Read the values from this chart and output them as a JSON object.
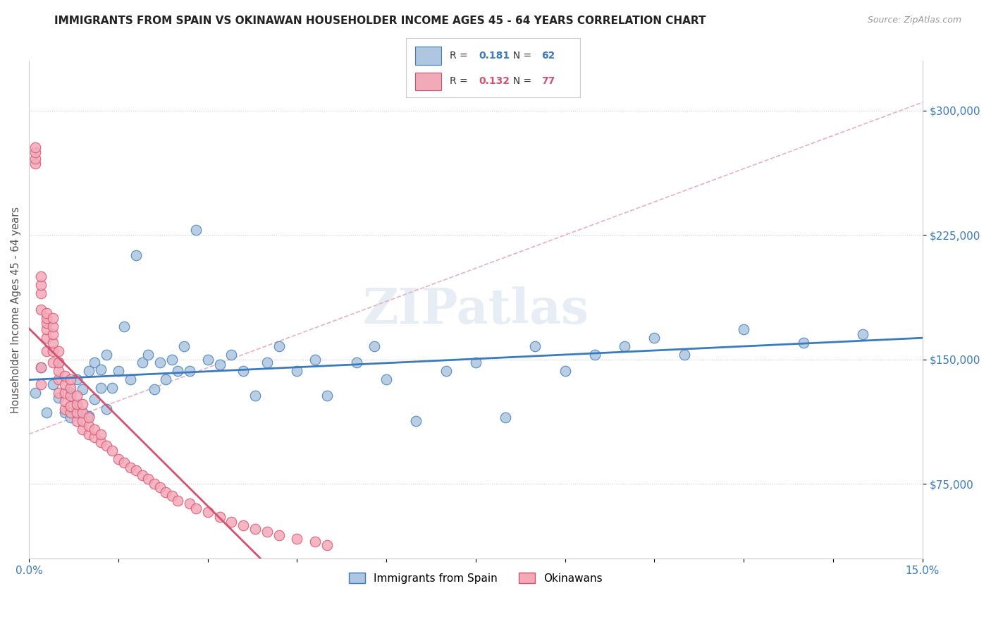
{
  "title": "IMMIGRANTS FROM SPAIN VS OKINAWAN HOUSEHOLDER INCOME AGES 45 - 64 YEARS CORRELATION CHART",
  "source": "Source: ZipAtlas.com",
  "ylabel": "Householder Income Ages 45 - 64 years",
  "xlim": [
    0.0,
    0.15
  ],
  "ylim": [
    30000,
    330000
  ],
  "yticks": [
    75000,
    150000,
    225000,
    300000
  ],
  "ytick_labels": [
    "$75,000",
    "$150,000",
    "$225,000",
    "$300,000"
  ],
  "xticks": [
    0.0,
    0.015,
    0.03,
    0.045,
    0.06,
    0.075,
    0.09,
    0.105,
    0.12,
    0.135,
    0.15
  ],
  "xtick_labels": [
    "0.0%",
    "",
    "",
    "",
    "",
    "",
    "",
    "",
    "",
    "",
    "15.0%"
  ],
  "legend1_R": "0.181",
  "legend1_N": "62",
  "legend2_R": "0.132",
  "legend2_N": "77",
  "blue_color": "#aec6df",
  "pink_color": "#f2aab8",
  "blue_line_color": "#3a7abf",
  "pink_line_color": "#d94f6e",
  "ref_line_color": "#e8b0bc",
  "watermark": "ZIPatlas",
  "blue_scatter_x": [
    0.001,
    0.002,
    0.003,
    0.004,
    0.005,
    0.005,
    0.006,
    0.007,
    0.007,
    0.008,
    0.008,
    0.009,
    0.009,
    0.01,
    0.01,
    0.011,
    0.011,
    0.012,
    0.012,
    0.013,
    0.013,
    0.014,
    0.015,
    0.016,
    0.017,
    0.018,
    0.019,
    0.02,
    0.021,
    0.022,
    0.023,
    0.024,
    0.025,
    0.026,
    0.027,
    0.028,
    0.03,
    0.032,
    0.034,
    0.036,
    0.038,
    0.04,
    0.042,
    0.045,
    0.048,
    0.05,
    0.055,
    0.058,
    0.06,
    0.065,
    0.07,
    0.075,
    0.08,
    0.085,
    0.09,
    0.095,
    0.1,
    0.105,
    0.11,
    0.12,
    0.13,
    0.14
  ],
  "blue_scatter_y": [
    130000,
    145000,
    118000,
    135000,
    127000,
    148000,
    118000,
    130000,
    115000,
    138000,
    122000,
    132000,
    118000,
    143000,
    116000,
    148000,
    126000,
    133000,
    144000,
    120000,
    153000,
    133000,
    143000,
    170000,
    138000,
    213000,
    148000,
    153000,
    132000,
    148000,
    138000,
    150000,
    143000,
    158000,
    143000,
    228000,
    150000,
    147000,
    153000,
    143000,
    128000,
    148000,
    158000,
    143000,
    150000,
    128000,
    148000,
    158000,
    138000,
    113000,
    143000,
    148000,
    115000,
    158000,
    143000,
    153000,
    158000,
    163000,
    153000,
    168000,
    160000,
    165000
  ],
  "pink_scatter_x": [
    0.001,
    0.001,
    0.001,
    0.001,
    0.002,
    0.002,
    0.002,
    0.002,
    0.002,
    0.002,
    0.003,
    0.003,
    0.003,
    0.003,
    0.003,
    0.003,
    0.004,
    0.004,
    0.004,
    0.004,
    0.004,
    0.004,
    0.005,
    0.005,
    0.005,
    0.005,
    0.005,
    0.006,
    0.006,
    0.006,
    0.006,
    0.006,
    0.007,
    0.007,
    0.007,
    0.007,
    0.007,
    0.008,
    0.008,
    0.008,
    0.008,
    0.009,
    0.009,
    0.009,
    0.009,
    0.01,
    0.01,
    0.01,
    0.011,
    0.011,
    0.012,
    0.012,
    0.013,
    0.014,
    0.015,
    0.016,
    0.017,
    0.018,
    0.019,
    0.02,
    0.021,
    0.022,
    0.023,
    0.024,
    0.025,
    0.027,
    0.028,
    0.03,
    0.032,
    0.034,
    0.036,
    0.038,
    0.04,
    0.042,
    0.045,
    0.048,
    0.05
  ],
  "pink_scatter_y": [
    268000,
    271000,
    275000,
    278000,
    180000,
    190000,
    195000,
    200000,
    135000,
    145000,
    155000,
    163000,
    168000,
    172000,
    175000,
    178000,
    148000,
    155000,
    160000,
    165000,
    170000,
    175000,
    130000,
    138000,
    143000,
    148000,
    155000,
    120000,
    125000,
    130000,
    135000,
    140000,
    118000,
    122000,
    128000,
    133000,
    138000,
    113000,
    118000,
    123000,
    128000,
    108000,
    113000,
    118000,
    123000,
    105000,
    110000,
    115000,
    103000,
    108000,
    100000,
    105000,
    98000,
    95000,
    90000,
    88000,
    85000,
    83000,
    80000,
    78000,
    75000,
    73000,
    70000,
    68000,
    65000,
    63000,
    60000,
    58000,
    55000,
    52000,
    50000,
    48000,
    46000,
    44000,
    42000,
    40000,
    38000
  ]
}
